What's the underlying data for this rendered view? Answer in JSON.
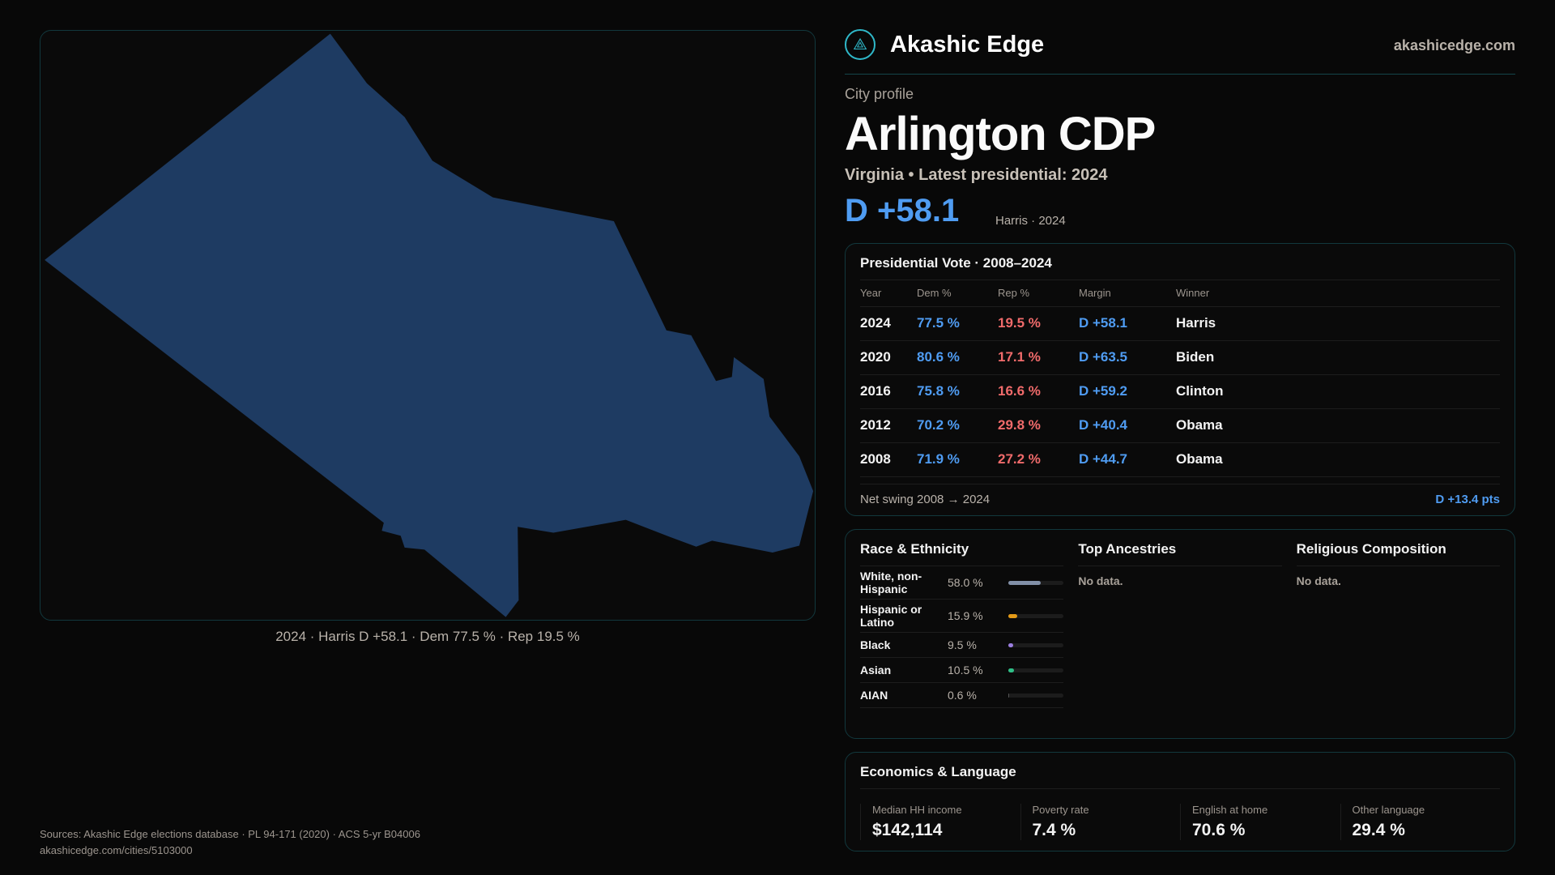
{
  "map": {
    "caption": "2024 · Harris D +58.1 · Dem 77.5 % · Rep 19.5 %",
    "fill": "#1e3b62"
  },
  "header": {
    "brand": "Akashic Edge",
    "site": "akashicedge.com",
    "logo_icon": "compass-seal-icon"
  },
  "profile": {
    "kicker": "City profile",
    "title": "Arlington CDP",
    "subtitle": "Virginia • Latest presidential: 2024",
    "margin": "D +58.1",
    "margin_note": "Harris · 2024"
  },
  "presidential": {
    "title": "Presidential Vote · 2008–2024",
    "headers": [
      "Year",
      "Dem %",
      "Rep %",
      "Margin",
      "Winner"
    ],
    "rows": [
      [
        "2024",
        "77.5 %",
        "19.5 %",
        "D +58.1",
        "Harris"
      ],
      [
        "2020",
        "80.6 %",
        "17.1 %",
        "D +63.5",
        "Biden"
      ],
      [
        "2016",
        "75.8 %",
        "16.6 %",
        "D +59.2",
        "Clinton"
      ],
      [
        "2012",
        "70.2 %",
        "29.8 %",
        "D +40.4",
        "Obama"
      ],
      [
        "2008",
        "71.9 %",
        "27.2 %",
        "D +44.7",
        "Obama"
      ]
    ],
    "swing_label": "Net swing 2008 → 2024",
    "swing_value": "D +13.4 pts"
  },
  "race": {
    "title": "Race & Ethnicity",
    "rows": [
      {
        "label": "White, non-Hispanic",
        "value": "58.0 %",
        "pct": 58.0,
        "color": "#8290a8"
      },
      {
        "label": "Hispanic or Latino",
        "value": "15.9 %",
        "pct": 15.9,
        "color": "#e39a17"
      },
      {
        "label": "Black",
        "value": "9.5 %",
        "pct": 9.5,
        "color": "#9b7fe0"
      },
      {
        "label": "Asian",
        "value": "10.5 %",
        "pct": 10.5,
        "color": "#2fbf87"
      },
      {
        "label": "AIAN",
        "value": "0.6 %",
        "pct": 0.6,
        "color": "#555555"
      }
    ]
  },
  "ancestries": {
    "title": "Top Ancestries",
    "empty": "No data."
  },
  "religion": {
    "title": "Religious Composition",
    "empty": "No data."
  },
  "economics": {
    "title": "Economics & Language",
    "cells": [
      {
        "label": "Median HH income",
        "value": "$142,114"
      },
      {
        "label": "Poverty rate",
        "value": "7.4 %"
      },
      {
        "label": "English at home",
        "value": "70.6 %"
      },
      {
        "label": "Other language",
        "value": "29.4 %"
      }
    ]
  },
  "footer": {
    "sources": "Sources: Akashic Edge elections database · PL 94-171 (2020) · ACS 5-yr B04006",
    "url": "akashicedge.com/cities/5103000"
  }
}
